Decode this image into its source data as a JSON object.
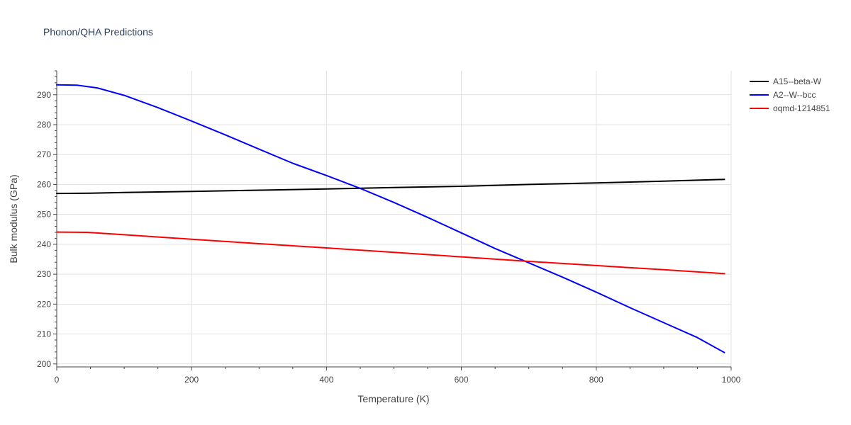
{
  "chart_data": {
    "type": "line",
    "title": "Phonon/QHA Predictions",
    "xlabel": "Temperature (K)",
    "ylabel": "Bulk modulus (GPa)",
    "xlim": [
      0,
      1000
    ],
    "ylim": [
      199,
      298
    ],
    "x_ticks": [
      0,
      200,
      400,
      600,
      800,
      1000
    ],
    "y_ticks": [
      200,
      210,
      220,
      230,
      240,
      250,
      260,
      270,
      280,
      290
    ],
    "grid": true,
    "legend_position": "top-right",
    "series": [
      {
        "name": "A15--beta-W",
        "color": "#000000",
        "x": [
          0,
          50,
          100,
          200,
          300,
          400,
          500,
          600,
          700,
          800,
          900,
          990
        ],
        "y": [
          257.0,
          257.1,
          257.3,
          257.7,
          258.1,
          258.5,
          259.0,
          259.4,
          260.0,
          260.5,
          261.1,
          261.7
        ]
      },
      {
        "name": "A2--W--bcc",
        "color": "#0000ff",
        "x": [
          0,
          30,
          60,
          100,
          150,
          200,
          250,
          300,
          350,
          400,
          450,
          500,
          550,
          600,
          650,
          700,
          750,
          800,
          850,
          900,
          950,
          990
        ],
        "y": [
          293.3,
          293.2,
          292.3,
          289.8,
          285.7,
          281.2,
          276.6,
          271.8,
          267.1,
          263.0,
          258.7,
          254.0,
          249.0,
          243.8,
          238.6,
          233.8,
          229.0,
          224.0,
          218.8,
          213.8,
          208.8,
          203.8
        ]
      },
      {
        "name": "oqmd-1214851",
        "color": "#ff0000",
        "x": [
          0,
          45,
          100,
          200,
          300,
          400,
          500,
          600,
          700,
          800,
          900,
          990
        ],
        "y": [
          244.1,
          244.0,
          243.2,
          241.7,
          240.2,
          238.8,
          237.3,
          235.8,
          234.3,
          232.9,
          231.5,
          230.2
        ]
      }
    ]
  }
}
